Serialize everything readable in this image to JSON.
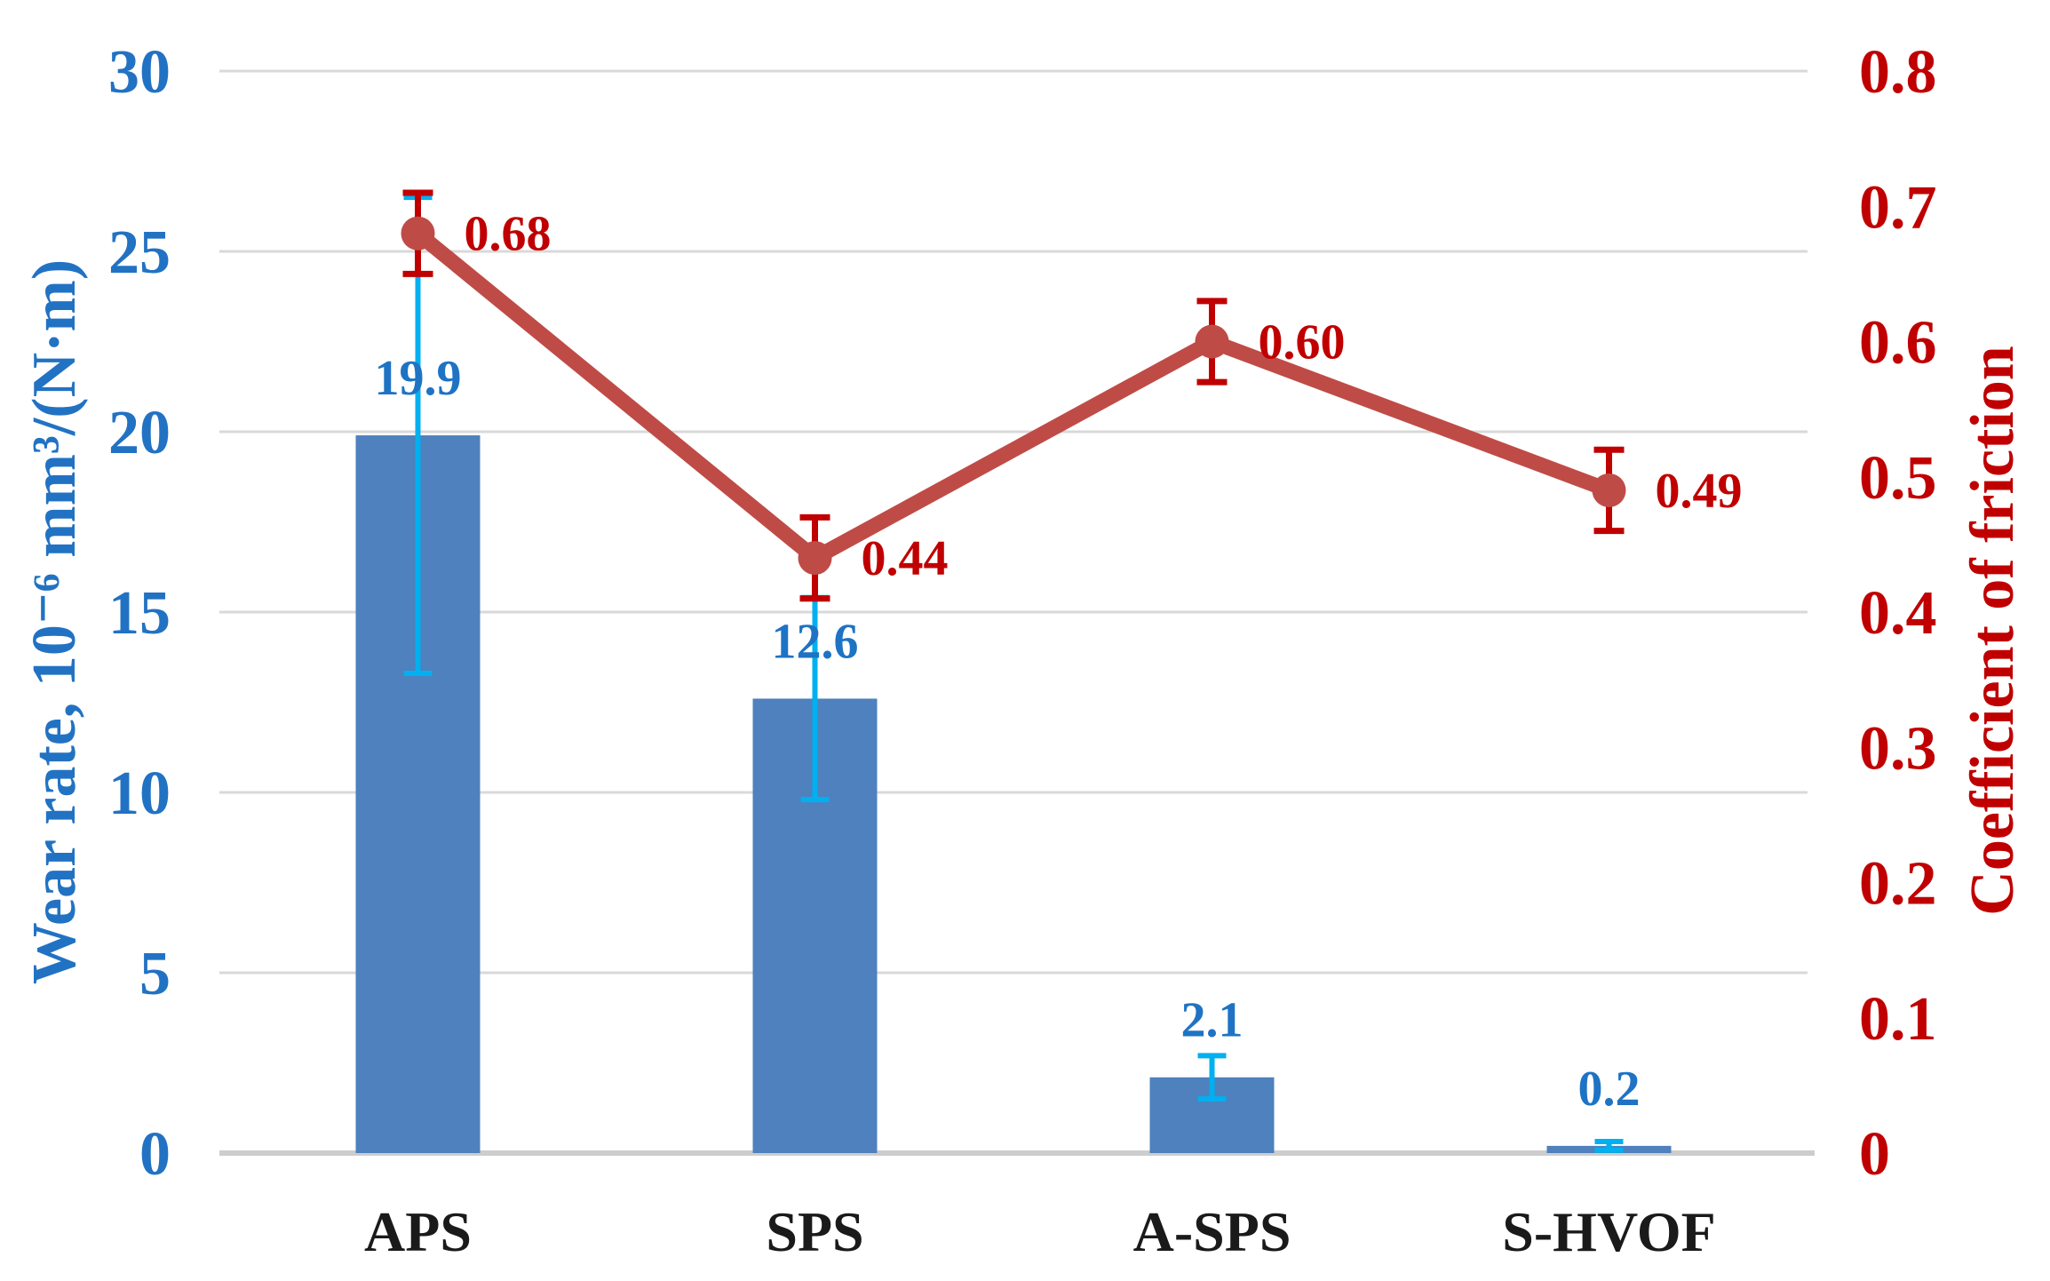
{
  "chart_data": {
    "type": "combo-bar-line",
    "title": "",
    "categories": [
      "APS",
      "SPS",
      "A-SPS",
      "S-HVOF"
    ],
    "series": [
      {
        "name": "Wear rate",
        "type": "bar",
        "axis": "left",
        "values": [
          19.9,
          12.6,
          2.1,
          0.2
        ],
        "labels": [
          "19.9",
          "12.6",
          "2.1",
          "0.2"
        ],
        "error_plus_minus": [
          6.6,
          2.8,
          0.6,
          0.12
        ],
        "bar_fill": "#4E81BD",
        "error_color": "#00B0F0",
        "label_color": "#1E73C4"
      },
      {
        "name": "Coefficient of friction",
        "type": "line",
        "axis": "right",
        "values": [
          0.68,
          0.44,
          0.6,
          0.49
        ],
        "labels": [
          "0.68",
          "0.44",
          "0.60",
          "0.49"
        ],
        "error_plus_minus": [
          0.03,
          0.03,
          0.03,
          0.03
        ],
        "line_color": "#BF4B47",
        "marker_color": "#BF4B47",
        "error_color": "#C00000",
        "label_color": "#C00000"
      }
    ],
    "left_axis": {
      "title": "Wear rate, 10⁻⁶ mm³/(N·m)",
      "min": 0,
      "max": 30,
      "tick_step": 5,
      "tick_labels": [
        "0",
        "5",
        "10",
        "15",
        "20",
        "25",
        "30"
      ],
      "color": "#2272C3"
    },
    "right_axis": {
      "title": "Coefficient of friction",
      "min": 0,
      "max": 0.8,
      "tick_step": 0.1,
      "tick_labels": [
        "0",
        "0.1",
        "0.2",
        "0.3",
        "0.4",
        "0.5",
        "0.6",
        "0.7",
        "0.8"
      ],
      "color": "#C00000"
    },
    "category_label_color": "#1A1A1A",
    "gridline_color": "#D9D9D9",
    "baseline_color": "#CDCDCD",
    "grid": true,
    "legend": false
  }
}
